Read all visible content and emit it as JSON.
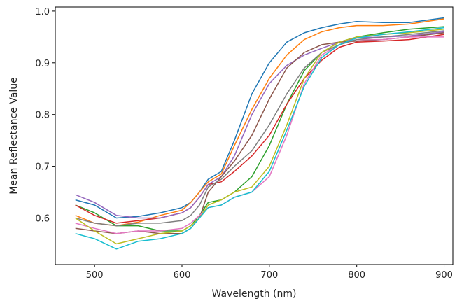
{
  "chart_data": {
    "type": "line",
    "title": "",
    "xlabel": "Wavelength (nm)",
    "ylabel": "Mean Reflectance Value",
    "xlim": [
      455,
      910
    ],
    "ylim": [
      0.51,
      1.008
    ],
    "xticks": [
      500,
      600,
      700,
      800,
      900
    ],
    "yticks": [
      0.6,
      0.7,
      0.8,
      0.9,
      1.0
    ],
    "xtick_labels": [
      "500",
      "600",
      "700",
      "800",
      "900"
    ],
    "ytick_labels": [
      "0.6",
      "0.7",
      "0.8",
      "0.9",
      "1.0"
    ],
    "grid": false,
    "legend": "none",
    "x": [
      478,
      500,
      525,
      550,
      575,
      600,
      610,
      620,
      630,
      645,
      660,
      680,
      700,
      720,
      740,
      760,
      780,
      800,
      830,
      860,
      900
    ],
    "series": [
      {
        "color": "#1f77b4",
        "values": [
          0.635,
          0.625,
          0.6,
          0.603,
          0.61,
          0.62,
          0.63,
          0.65,
          0.675,
          0.69,
          0.75,
          0.84,
          0.9,
          0.94,
          0.958,
          0.968,
          0.975,
          0.98,
          0.978,
          0.978,
          0.987
        ]
      },
      {
        "color": "#ff7f0e",
        "values": [
          0.605,
          0.59,
          0.585,
          0.592,
          0.605,
          0.615,
          0.63,
          0.65,
          0.67,
          0.685,
          0.74,
          0.81,
          0.87,
          0.915,
          0.945,
          0.96,
          0.968,
          0.972,
          0.972,
          0.975,
          0.985
        ]
      },
      {
        "color": "#2ca02c",
        "values": [
          0.625,
          0.61,
          0.585,
          0.585,
          0.575,
          0.575,
          0.585,
          0.605,
          0.63,
          0.635,
          0.65,
          0.68,
          0.74,
          0.82,
          0.885,
          0.92,
          0.94,
          0.95,
          0.958,
          0.965,
          0.97
        ]
      },
      {
        "color": "#d62728",
        "values": [
          0.625,
          0.605,
          0.59,
          0.595,
          0.6,
          0.61,
          0.62,
          0.64,
          0.665,
          0.67,
          0.69,
          0.72,
          0.76,
          0.82,
          0.87,
          0.905,
          0.93,
          0.94,
          0.942,
          0.945,
          0.955
        ]
      },
      {
        "color": "#9467bd",
        "values": [
          0.645,
          0.63,
          0.605,
          0.6,
          0.6,
          0.61,
          0.62,
          0.64,
          0.665,
          0.68,
          0.72,
          0.8,
          0.86,
          0.895,
          0.915,
          0.928,
          0.94,
          0.948,
          0.95,
          0.952,
          0.96
        ]
      },
      {
        "color": "#8c564b",
        "values": [
          0.58,
          0.575,
          0.57,
          0.575,
          0.57,
          0.57,
          0.58,
          0.6,
          0.65,
          0.68,
          0.71,
          0.76,
          0.83,
          0.89,
          0.92,
          0.935,
          0.94,
          0.942,
          0.945,
          0.95,
          0.958
        ]
      },
      {
        "color": "#e377c2",
        "values": [
          0.59,
          0.58,
          0.57,
          0.575,
          0.575,
          0.58,
          0.59,
          0.605,
          0.62,
          0.625,
          0.64,
          0.65,
          0.68,
          0.76,
          0.86,
          0.915,
          0.935,
          0.945,
          0.945,
          0.95,
          0.95
        ]
      },
      {
        "color": "#7f7f7f",
        "values": [
          0.6,
          0.59,
          0.585,
          0.59,
          0.59,
          0.595,
          0.605,
          0.625,
          0.66,
          0.675,
          0.7,
          0.73,
          0.78,
          0.84,
          0.89,
          0.92,
          0.935,
          0.945,
          0.95,
          0.955,
          0.962
        ]
      },
      {
        "color": "#bcbd22",
        "values": [
          0.6,
          0.575,
          0.55,
          0.56,
          0.57,
          0.575,
          0.585,
          0.6,
          0.625,
          0.635,
          0.65,
          0.66,
          0.7,
          0.78,
          0.87,
          0.92,
          0.94,
          0.95,
          0.955,
          0.958,
          0.965
        ]
      },
      {
        "color": "#17becf",
        "values": [
          0.57,
          0.56,
          0.54,
          0.555,
          0.56,
          0.57,
          0.58,
          0.6,
          0.62,
          0.625,
          0.64,
          0.65,
          0.69,
          0.77,
          0.855,
          0.91,
          0.935,
          0.948,
          0.955,
          0.96,
          0.968
        ]
      }
    ]
  }
}
